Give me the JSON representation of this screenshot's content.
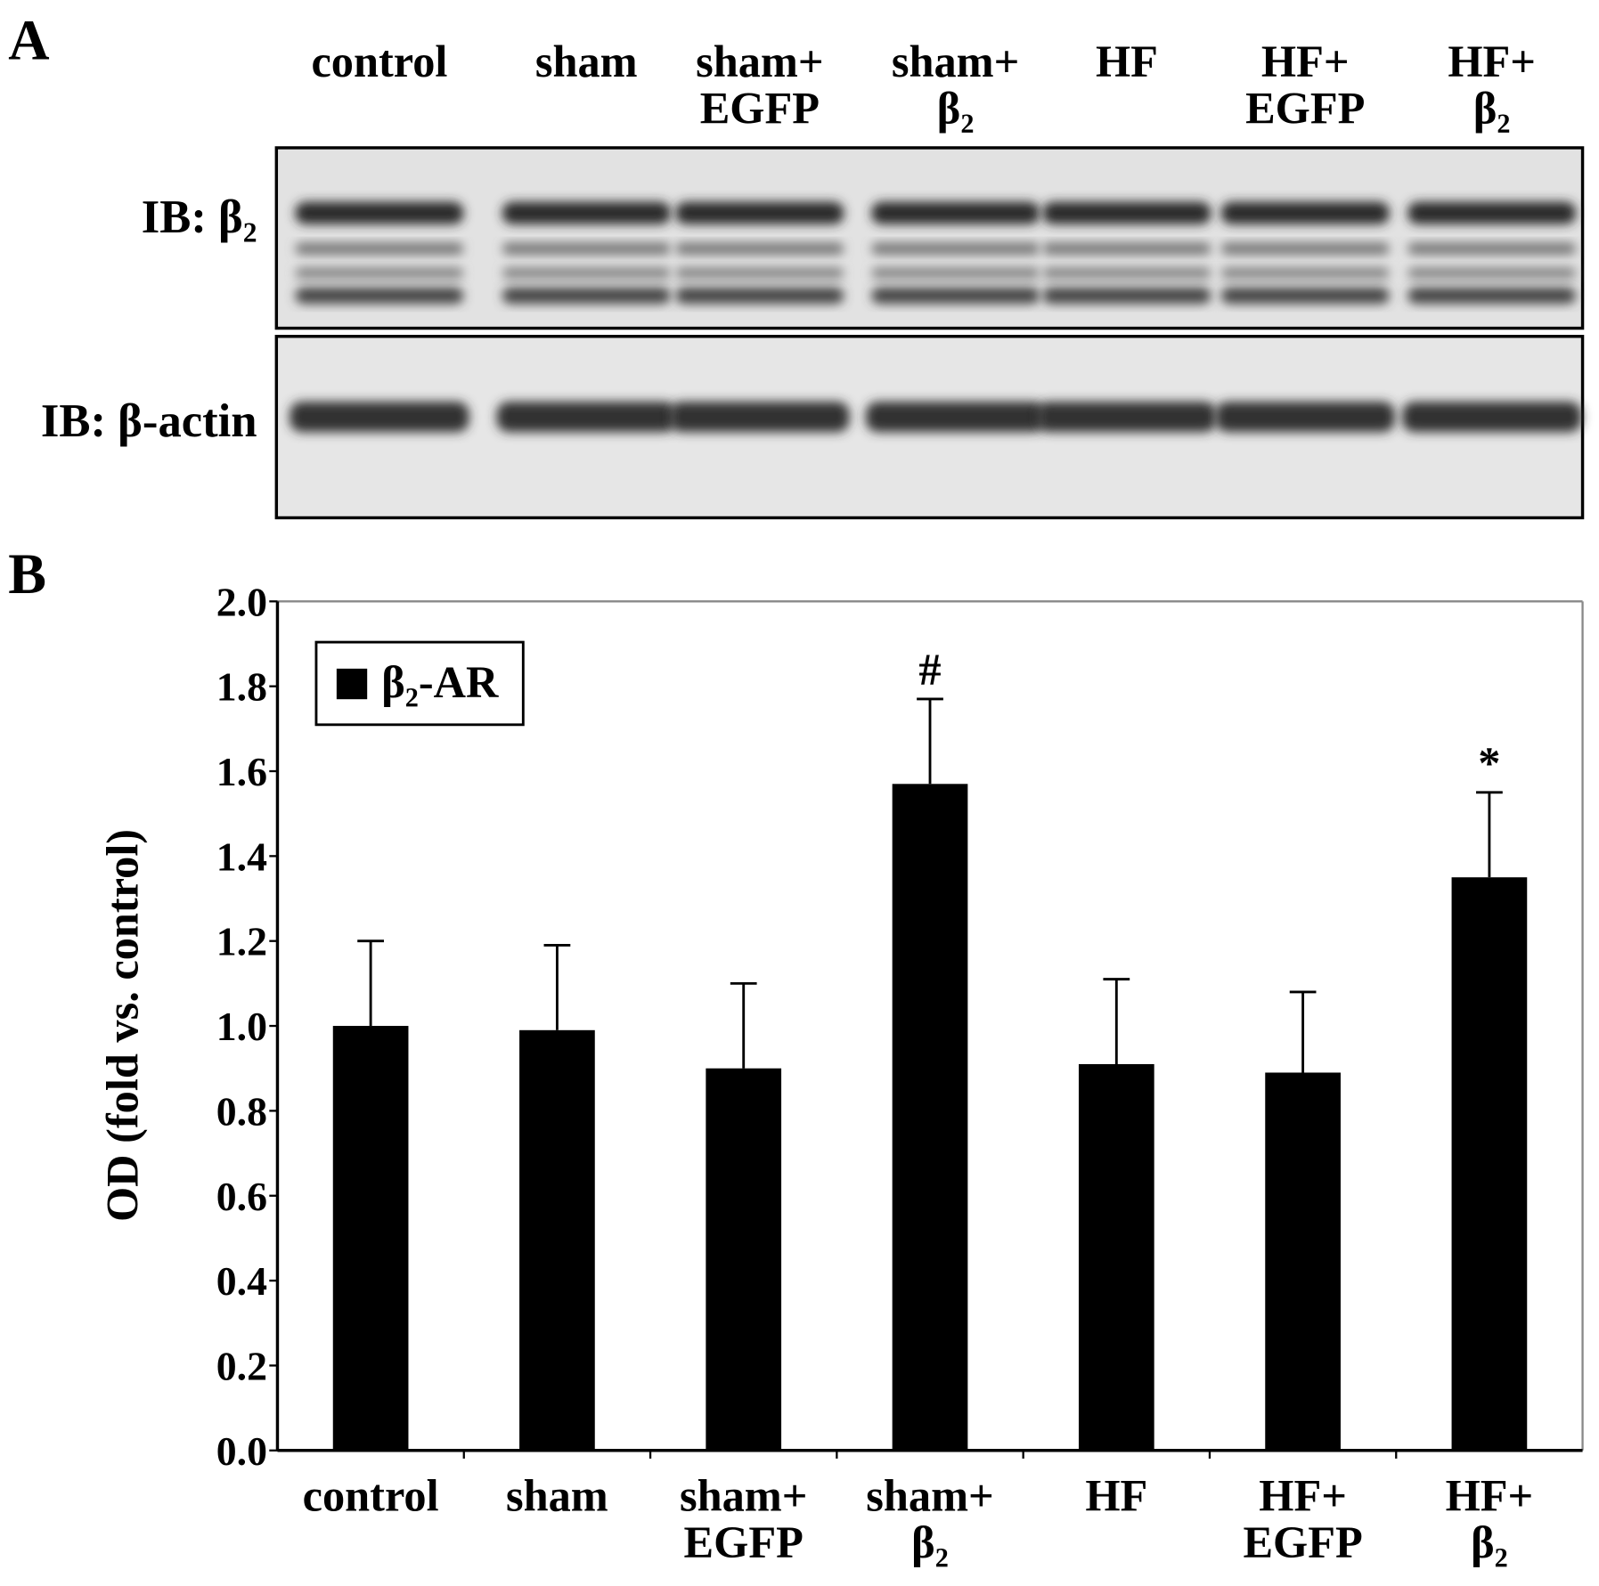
{
  "panel_a": {
    "label": "A",
    "lanes": [
      "control",
      "sham",
      "sham+\nEGFP",
      "sham+\nβ₂",
      "HF",
      "HF+\nEGFP",
      "HF+\nβ₂"
    ],
    "blots": [
      "IB: β₂",
      "IB: β-actin"
    ]
  },
  "panel_b": {
    "label": "B"
  },
  "chart_data": {
    "type": "bar",
    "y_label": "OD  (fold vs. control)",
    "categories": [
      "control",
      "sham",
      "sham+\nEGFP",
      "sham+\nβ₂",
      "HF",
      "HF+\nEGFP",
      "HF+\nβ₂"
    ],
    "series": [
      {
        "name": "β₂-AR",
        "color": "#000000",
        "values": [
          1.0,
          0.99,
          0.9,
          1.57,
          0.91,
          0.89,
          1.35
        ],
        "errors": [
          0.2,
          0.2,
          0.2,
          0.2,
          0.2,
          0.19,
          0.2
        ]
      }
    ],
    "significance": [
      null,
      null,
      null,
      "#",
      null,
      null,
      "*"
    ],
    "ylim": [
      0,
      2
    ],
    "yticks": [
      {
        "value": 0,
        "label": "0.0"
      },
      0.2,
      0.4,
      0.6,
      0.8,
      {
        "value": 1,
        "label": "1.0"
      },
      1.2,
      1.4,
      1.6,
      1.8,
      {
        "value": 2,
        "label": "2.0"
      }
    ],
    "legend": "top-left"
  }
}
